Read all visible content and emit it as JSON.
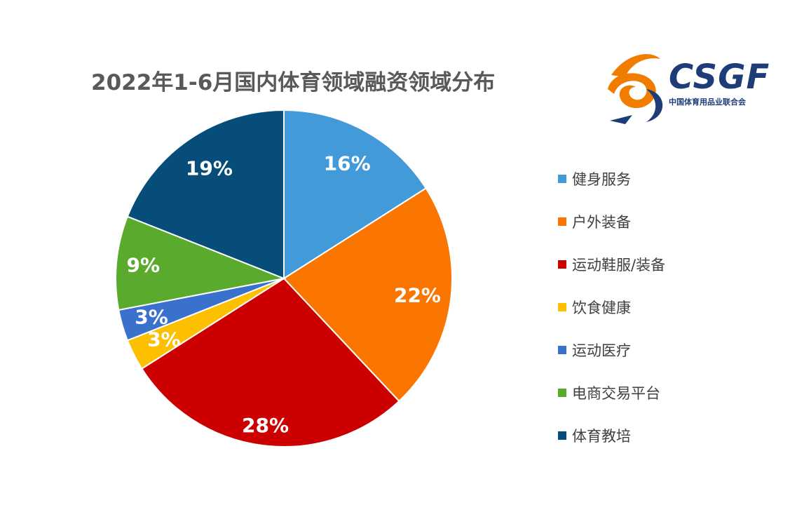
{
  "logo": {
    "wordmark": "CSGF",
    "subtitle": "中国体育用品业联合会",
    "colors": {
      "orange": "#f07c00",
      "navy": "#1e3c78"
    },
    "icon": "csgf-swirl-logo-icon"
  },
  "chart_data": {
    "type": "pie",
    "title": "2022年1-6月国内体育领域融资领域分布",
    "labels": [
      "健身服务",
      "户外装备",
      "运动鞋服/装备",
      "饮食健康",
      "运动医疗",
      "电商交易平台",
      "体育教培"
    ],
    "values": [
      16,
      22,
      28,
      3,
      3,
      9,
      19
    ],
    "value_labels": [
      "16%",
      "22%",
      "28%",
      "3%",
      "3%",
      "9%",
      "19%"
    ],
    "unit": "%",
    "colors": [
      "#439ad9",
      "#fb7501",
      "#cc0000",
      "#fcc000",
      "#3a71cc",
      "#5aab2d",
      "#074d7a"
    ],
    "start": "12 o'clock",
    "direction": "clockwise",
    "legend_position": "right"
  }
}
